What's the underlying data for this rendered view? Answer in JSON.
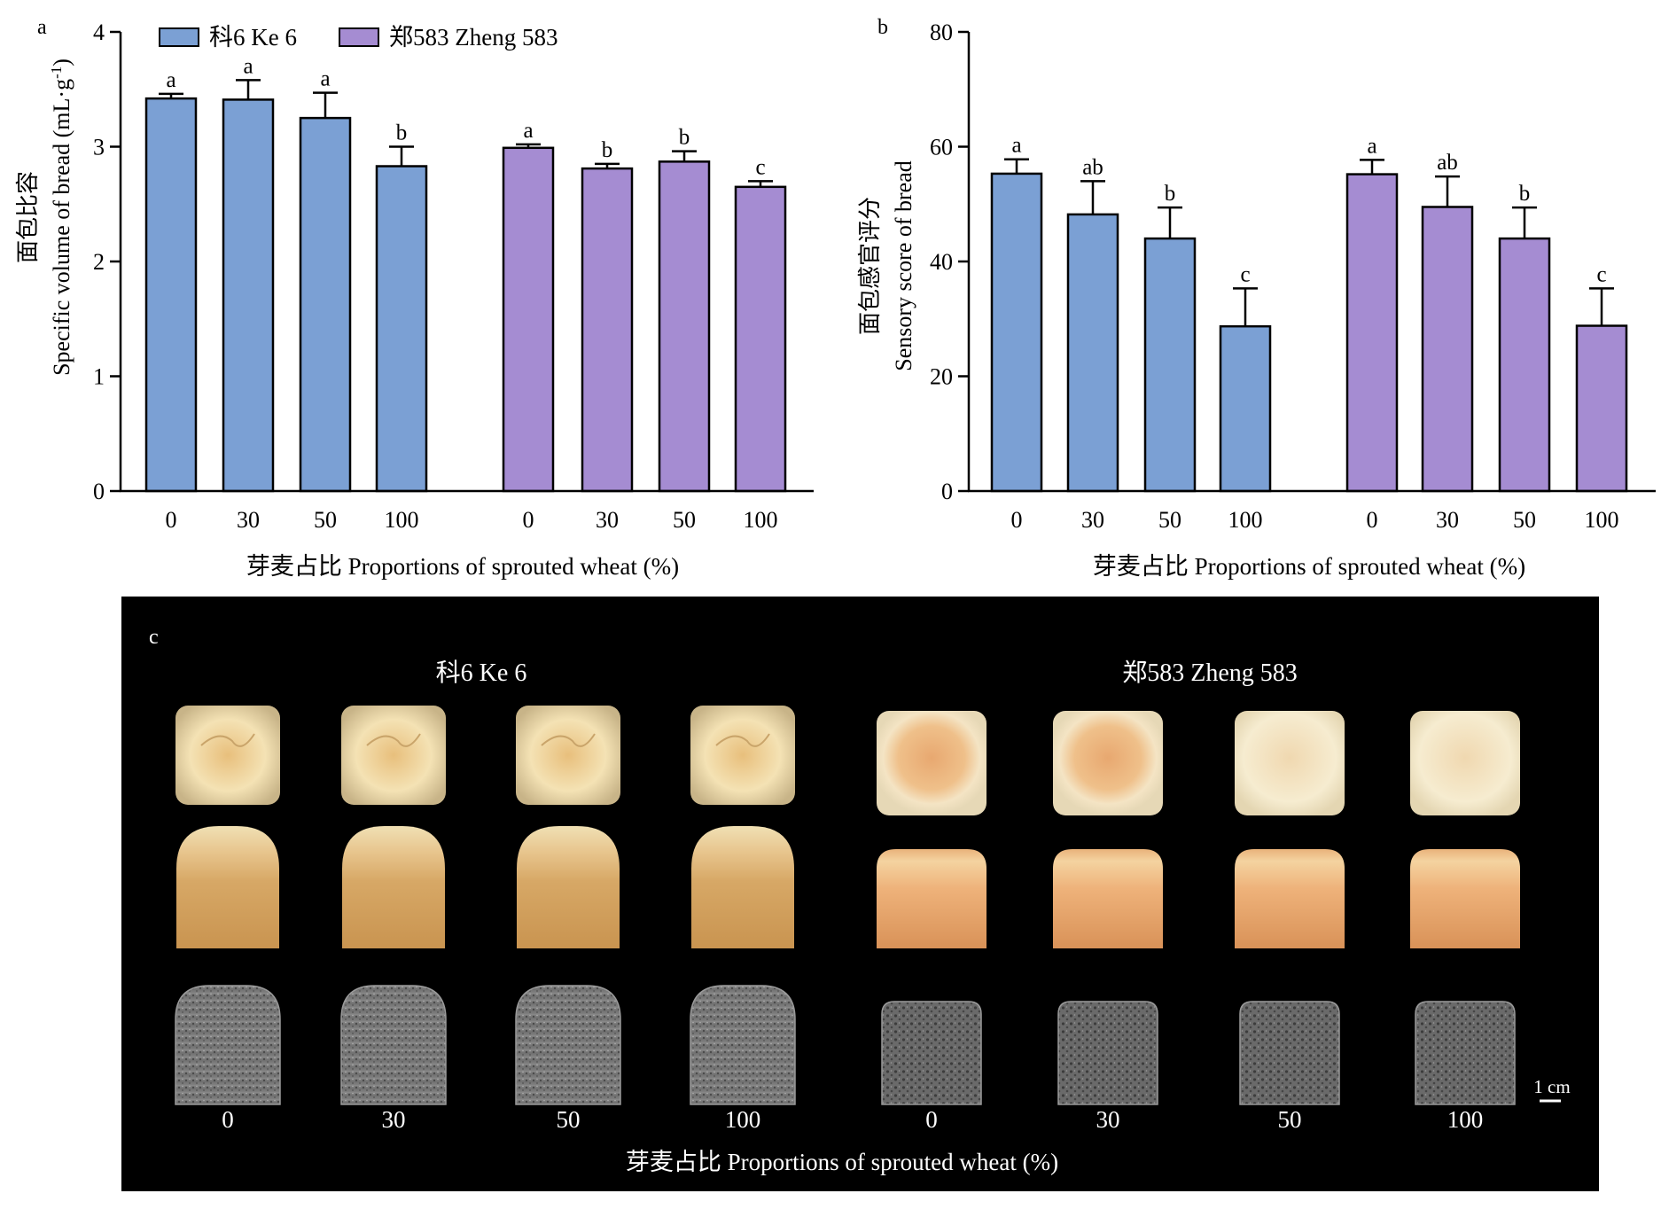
{
  "chart_data": [
    {
      "panel": "a",
      "type": "bar",
      "ylabel_cn": "面包比容",
      "ylabel_en": "Specific volume of bread (mL·g",
      "ylabel_sup": "-1",
      "ylabel_end": ")",
      "xlabel": "芽麦占比 Proportions of sprouted wheat (%)",
      "ylim": [
        0,
        4
      ],
      "yticks": [
        "0",
        "1",
        "2",
        "3",
        "4"
      ],
      "categories": [
        "0",
        "30",
        "50",
        "100"
      ],
      "series": [
        {
          "name": "科6 Ke 6",
          "color": "#7ba0d4",
          "values": [
            3.42,
            3.41,
            3.25,
            2.83
          ],
          "errors": [
            0.04,
            0.17,
            0.22,
            0.17
          ],
          "letters": [
            "a",
            "a",
            "a",
            "b"
          ]
        },
        {
          "name": "郑583 Zheng 583",
          "color": "#a58cd2",
          "values": [
            2.99,
            2.81,
            2.87,
            2.65
          ],
          "errors": [
            0.03,
            0.04,
            0.09,
            0.05
          ],
          "letters": [
            "a",
            "b",
            "b",
            "c"
          ]
        }
      ]
    },
    {
      "panel": "b",
      "type": "bar",
      "ylabel_cn": "面包感官评分",
      "ylabel_en": "Sensory score of bread",
      "xlabel": "芽麦占比 Proportions of sprouted wheat (%)",
      "ylim": [
        0,
        80
      ],
      "yticks": [
        "0",
        "20",
        "40",
        "60",
        "80"
      ],
      "categories": [
        "0",
        "30",
        "50",
        "100"
      ],
      "series": [
        {
          "name": "科6 Ke 6",
          "color": "#7ba0d4",
          "values": [
            55.3,
            48.2,
            44.0,
            28.7
          ],
          "errors": [
            2.5,
            5.8,
            5.4,
            6.6
          ],
          "letters": [
            "a",
            "ab",
            "b",
            "c"
          ]
        },
        {
          "name": "郑583 Zheng 583",
          "color": "#a58cd2",
          "values": [
            55.2,
            49.5,
            44.0,
            28.8
          ],
          "errors": [
            2.5,
            5.3,
            5.4,
            6.5
          ],
          "letters": [
            "a",
            "ab",
            "b",
            "c"
          ]
        }
      ]
    }
  ],
  "photo_panel": {
    "panel": "c",
    "group_labels": [
      "科6 Ke 6",
      "郑583 Zheng 583"
    ],
    "x_labels": [
      "0",
      "30",
      "50",
      "100",
      "0",
      "30",
      "50",
      "100"
    ],
    "xlabel": "芽麦占比 Proportions of sprouted wheat (%)",
    "scale_bar": "1 cm",
    "rows": [
      "top view",
      "side view",
      "crumb scan"
    ]
  }
}
